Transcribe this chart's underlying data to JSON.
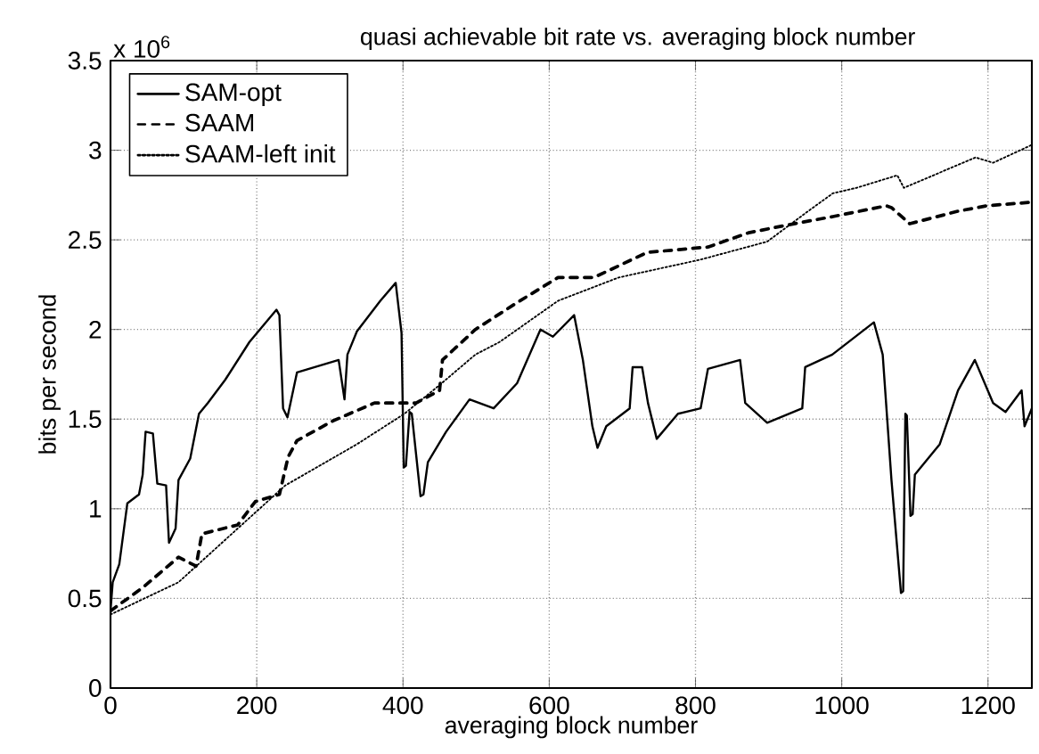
{
  "chart_data": {
    "type": "line",
    "title": "quasi achievable bit rate vs. averaging block number",
    "xlabel": "averaging block number",
    "ylabel": "bits per second",
    "annotations": [
      "x 10$^{6}$"
    ],
    "xlim": [
      0,
      1260
    ],
    "ylim": [
      0,
      3.5
    ],
    "xticks": [
      0,
      200,
      400,
      600,
      800,
      1000,
      1200
    ],
    "yticks": [
      0,
      0.5,
      1,
      1.5,
      2,
      2.5,
      3,
      3.5
    ],
    "grid": true,
    "legend": "top left",
    "marker": "none",
    "series": [
      {
        "name": "SAM-opt",
        "color": "#000000",
        "line_style": "solid",
        "x": [
          0,
          3,
          12,
          23,
          39,
          44,
          48,
          58,
          64,
          76,
          80,
          89,
          93,
          109,
          121,
          133,
          157,
          190,
          227,
          231,
          236,
          242,
          255,
          312,
          320,
          324,
          337,
          369,
          390,
          398,
          401,
          404,
          409,
          412,
          424,
          428,
          434,
          459,
          491,
          524,
          556,
          588,
          605,
          634,
          646,
          659,
          666,
          678,
          710,
          714,
          727,
          735,
          747,
          776,
          807,
          817,
          861,
          868,
          898,
          946,
          950,
          987,
          1044,
          1056,
          1068,
          1081,
          1084,
          1087,
          1089,
          1094,
          1097,
          1100,
          1134,
          1159,
          1182,
          1207,
          1224,
          1246,
          1250,
          1260
        ],
        "values": [
          0.43,
          0.59,
          0.69,
          1.03,
          1.08,
          1.19,
          1.43,
          1.42,
          1.14,
          1.13,
          0.81,
          0.89,
          1.16,
          1.28,
          1.53,
          1.59,
          1.72,
          1.93,
          2.11,
          2.08,
          1.56,
          1.51,
          1.76,
          1.83,
          1.61,
          1.86,
          1.99,
          2.16,
          2.26,
          1.98,
          1.23,
          1.24,
          1.54,
          1.53,
          1.07,
          1.08,
          1.26,
          1.43,
          1.61,
          1.56,
          1.7,
          2.0,
          1.96,
          2.08,
          1.83,
          1.46,
          1.34,
          1.46,
          1.56,
          1.79,
          1.79,
          1.59,
          1.39,
          1.53,
          1.56,
          1.78,
          1.83,
          1.59,
          1.48,
          1.56,
          1.79,
          1.86,
          2.04,
          1.86,
          1.16,
          0.53,
          0.54,
          1.53,
          1.52,
          0.96,
          0.97,
          1.19,
          1.36,
          1.66,
          1.83,
          1.59,
          1.54,
          1.66,
          1.46,
          1.56
        ]
      },
      {
        "name": "SAAM",
        "color": "#000000",
        "line_style": "dashed",
        "x": [
          0,
          44,
          93,
          117,
          125,
          174,
          198,
          231,
          243,
          255,
          304,
          361,
          418,
          450,
          454,
          499,
          556,
          612,
          661,
          734,
          817,
          873,
          922,
          988,
          1061,
          1068,
          1093,
          1159,
          1198,
          1260
        ],
        "values": [
          0.43,
          0.56,
          0.73,
          0.68,
          0.86,
          0.91,
          1.04,
          1.08,
          1.29,
          1.38,
          1.49,
          1.59,
          1.59,
          1.66,
          1.83,
          2.0,
          2.15,
          2.29,
          2.29,
          2.43,
          2.46,
          2.54,
          2.58,
          2.63,
          2.69,
          2.68,
          2.59,
          2.66,
          2.69,
          2.71
        ]
      },
      {
        "name": "SAAM-left init",
        "color": "#000000",
        "line_style": "dotted",
        "x": [
          0,
          93,
          174,
          239,
          337,
          402,
          450,
          499,
          532,
          612,
          695,
          807,
          898,
          954,
          988,
          1020,
          1076,
          1085,
          1183,
          1207,
          1260
        ],
        "values": [
          0.41,
          0.59,
          0.89,
          1.13,
          1.36,
          1.53,
          1.69,
          1.86,
          1.93,
          2.16,
          2.29,
          2.39,
          2.49,
          2.66,
          2.76,
          2.79,
          2.86,
          2.79,
          2.96,
          2.93,
          3.03
        ]
      }
    ]
  }
}
